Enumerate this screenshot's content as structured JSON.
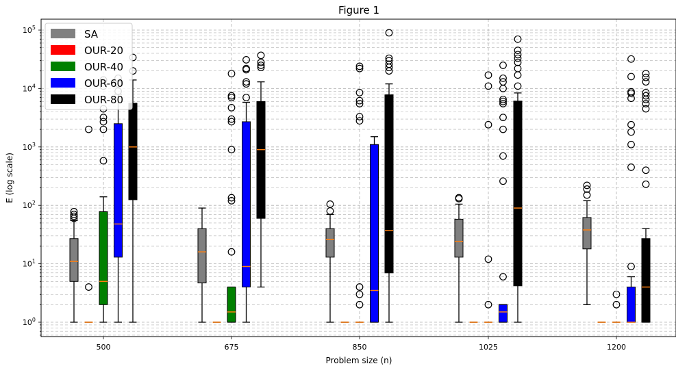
{
  "chart_data": {
    "type": "box",
    "title": "Figure 1",
    "xlabel": "Problem size (n)",
    "ylabel": "E (log scale)",
    "yscale": "log",
    "ylim": [
      0.55,
      180000
    ],
    "y_ticks": [
      {
        "value": 1,
        "base": "10",
        "exp": "0"
      },
      {
        "value": 10,
        "base": "10",
        "exp": "1"
      },
      {
        "value": 100,
        "base": "10",
        "exp": "2"
      },
      {
        "value": 1000,
        "base": "10",
        "exp": "3"
      },
      {
        "value": 10000,
        "base": "10",
        "exp": "4"
      },
      {
        "value": 100000,
        "base": "10",
        "exp": "5"
      }
    ],
    "grid": true,
    "legend_position": "top-left",
    "categories": [
      "500",
      "675",
      "850",
      "1025",
      "1200"
    ],
    "series": [
      {
        "name": "SA",
        "color": "#808080",
        "boxes": [
          {
            "whislo": 1,
            "q1": 5,
            "med": 11,
            "q3": 27,
            "whishi": 55,
            "fliers": [
              60,
              65,
              70,
              78
            ]
          },
          {
            "whislo": 1,
            "q1": 4.7,
            "med": 16,
            "q3": 40,
            "whishi": 90,
            "fliers": []
          },
          {
            "whislo": 1,
            "q1": 13,
            "med": 26,
            "q3": 40,
            "whishi": 70,
            "fliers": [
              80,
              105
            ]
          },
          {
            "whislo": 1,
            "q1": 13,
            "med": 24,
            "q3": 58,
            "whishi": 105,
            "fliers": [
              130,
              135
            ]
          },
          {
            "whislo": 2,
            "q1": 18,
            "med": 38,
            "q3": 62,
            "whishi": 120,
            "fliers": [
              150,
              190,
              220
            ]
          }
        ]
      },
      {
        "name": "OUR-20",
        "color": "#ff0000",
        "boxes": [
          {
            "whislo": 1,
            "q1": 1,
            "med": 1,
            "q3": 1,
            "whishi": 1,
            "fliers": [
              4,
              2000
            ]
          },
          {
            "whislo": 1,
            "q1": 1,
            "med": 1,
            "q3": 1,
            "whishi": 1,
            "fliers": []
          },
          {
            "whislo": 1,
            "q1": 1,
            "med": 1,
            "q3": 1,
            "whishi": 1,
            "fliers": []
          },
          {
            "whislo": 1,
            "q1": 1,
            "med": 1,
            "q3": 1,
            "whishi": 1,
            "fliers": []
          },
          {
            "whislo": 1,
            "q1": 1,
            "med": 1,
            "q3": 1,
            "whishi": 1,
            "fliers": []
          }
        ]
      },
      {
        "name": "OUR-40",
        "color": "#008000",
        "boxes": [
          {
            "whislo": 1,
            "q1": 2,
            "med": 5,
            "q3": 78,
            "whishi": 140,
            "fliers": [
              580,
              2000,
              2700,
              3200,
              4500,
              11000,
              14000
            ]
          },
          {
            "whislo": 1,
            "q1": 1,
            "med": 1.5,
            "q3": 4,
            "whishi": 4,
            "fliers": [
              16,
              120,
              135,
              900,
              2700,
              3000,
              4700,
              7000,
              7500,
              18000
            ]
          },
          {
            "whislo": 1,
            "q1": 1,
            "med": 1,
            "q3": 1,
            "whishi": 1,
            "fliers": [
              2,
              3,
              4,
              2800,
              3300,
              5500,
              6200,
              8500,
              22000,
              24000
            ]
          },
          {
            "whislo": 1,
            "q1": 1,
            "med": 1,
            "q3": 1,
            "whishi": 1,
            "fliers": [
              2,
              12,
              2400,
              11000,
              17000
            ]
          },
          {
            "whislo": 1,
            "q1": 1,
            "med": 1,
            "q3": 1,
            "whishi": 1,
            "fliers": [
              2,
              3
            ]
          }
        ]
      },
      {
        "name": "OUR-60",
        "color": "#0000ff",
        "boxes": [
          {
            "whislo": 1,
            "q1": 13,
            "med": 48,
            "q3": 2500,
            "whishi": 8000,
            "fliers": [
              9000,
              12000,
              15000
            ]
          },
          {
            "whislo": 1,
            "q1": 4,
            "med": 9,
            "q3": 2700,
            "whishi": 5800,
            "fliers": [
              7000,
              12000,
              13000,
              21000,
              22000,
              31000
            ]
          },
          {
            "whislo": 1,
            "q1": 1,
            "med": 3.5,
            "q3": 1100,
            "whishi": 1500,
            "fliers": []
          },
          {
            "whislo": 1,
            "q1": 1,
            "med": 1.5,
            "q3": 2,
            "whishi": 2,
            "fliers": [
              6,
              260,
              700,
              2000,
              3200,
              5500,
              6000,
              6500,
              10000,
              13000,
              15000,
              25000
            ]
          },
          {
            "whislo": 1,
            "q1": 1,
            "med": 1,
            "q3": 4,
            "whishi": 6,
            "fliers": [
              9,
              450,
              1100,
              1800,
              2400,
              6800,
              8300,
              8800,
              16000,
              32000
            ]
          }
        ]
      },
      {
        "name": "OUR-80",
        "color": "#000000",
        "boxes": [
          {
            "whislo": 1,
            "q1": 125,
            "med": 1000,
            "q3": 5600,
            "whishi": 14000,
            "fliers": [
              20000,
              34000
            ]
          },
          {
            "whislo": 4,
            "q1": 60,
            "med": 900,
            "q3": 6000,
            "whishi": 13000,
            "fliers": [
              23000,
              25000,
              28000,
              37000
            ]
          },
          {
            "whislo": 1,
            "q1": 7,
            "med": 37,
            "q3": 7800,
            "whishi": 12000,
            "fliers": [
              20000,
              23000,
              26000,
              30000,
              33000,
              90000
            ]
          },
          {
            "whislo": 1,
            "q1": 4.2,
            "med": 90,
            "q3": 6100,
            "whishi": 8400,
            "fliers": [
              11000,
              17000,
              22000,
              28000,
              33000,
              38000,
              45000,
              70000
            ]
          },
          {
            "whislo": 1,
            "q1": 1,
            "med": 4,
            "q3": 27,
            "whishi": 40,
            "fliers": [
              230,
              400,
              4500,
              5500,
              6500,
              7500,
              8500,
              13000,
              15500,
              18000
            ]
          }
        ]
      }
    ]
  }
}
